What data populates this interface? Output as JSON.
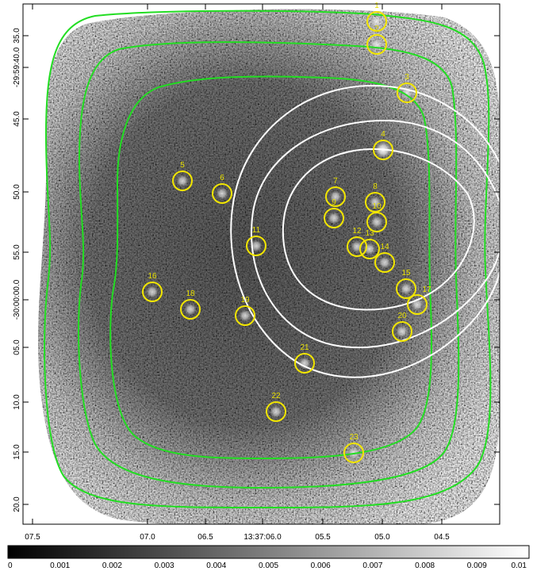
{
  "image": {
    "description_free": true,
    "axes": {
      "x_ticks": [
        "07.5",
        "07.0",
        "06.5",
        "13:37:06.0",
        "05.5",
        "05.0",
        "04.5"
      ],
      "y_ticks": [
        "35.0",
        "-29:59:40.0",
        "45.0",
        "50.0",
        "55.0",
        "-30:00:00.0",
        "05.0",
        "10.0",
        "15.0",
        "20.0"
      ]
    },
    "colorbar": {
      "ticks": [
        "0",
        "0.001",
        "0.002",
        "0.003",
        "0.004",
        "0.005",
        "0.006",
        "0.007",
        "0.008",
        "0.009",
        "0.01"
      ],
      "min": 0,
      "max": 0.01
    },
    "sources": [
      {
        "label": "1"
      },
      {
        "label": "2"
      },
      {
        "label": "3"
      },
      {
        "label": "4"
      },
      {
        "label": "5"
      },
      {
        "label": "6"
      },
      {
        "label": "7"
      },
      {
        "label": "8"
      },
      {
        "label": "9"
      },
      {
        "label": "10"
      },
      {
        "label": "11"
      },
      {
        "label": "12"
      },
      {
        "label": "13"
      },
      {
        "label": "14"
      },
      {
        "label": "15"
      },
      {
        "label": "16"
      },
      {
        "label": "17"
      },
      {
        "label": "18"
      },
      {
        "label": "19"
      },
      {
        "label": "20"
      },
      {
        "label": "21"
      },
      {
        "label": "22"
      },
      {
        "label": "23"
      }
    ],
    "colors": {
      "source_marker": "#f2e600",
      "green_contour": "#22dd22",
      "white_contour": "#ffffff"
    }
  }
}
